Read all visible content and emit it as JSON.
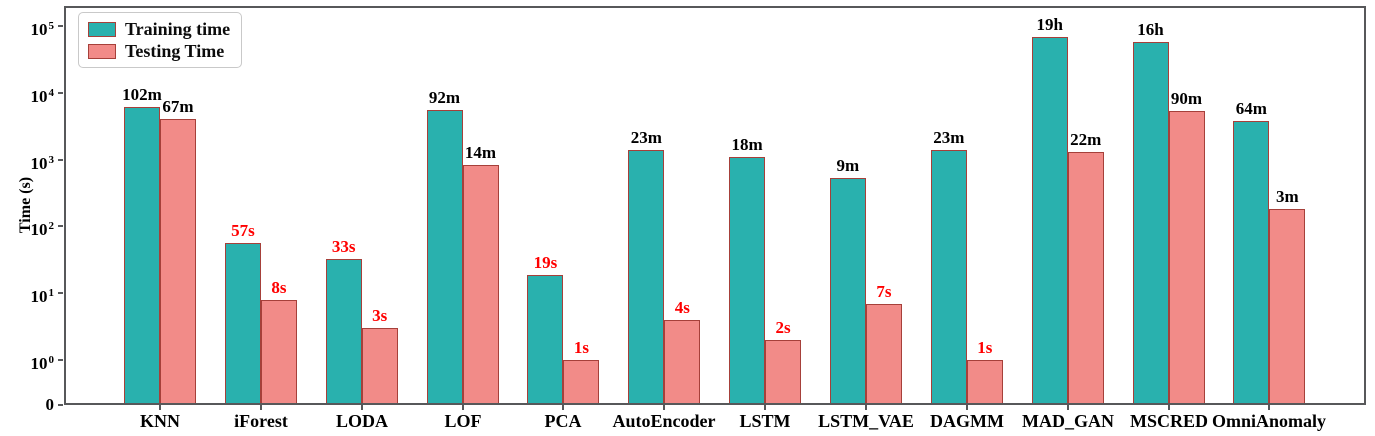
{
  "chart_data": {
    "type": "bar",
    "title": "",
    "xlabel": "",
    "ylabel": "Time (s)",
    "yscale": "symlog",
    "ylim": [
      0,
      100000
    ],
    "grid": false,
    "legend_position": "upper left",
    "categories": [
      "KNN",
      "iForest",
      "LODA",
      "LOF",
      "PCA",
      "AutoEncoder",
      "LSTM",
      "LSTM_VAE",
      "DAGMM",
      "MAD_GAN",
      "MSCRED",
      "OmniAnomaly"
    ],
    "y_ticks": [
      {
        "base": "10",
        "exp": "5",
        "value": 100000
      },
      {
        "base": "10",
        "exp": "4",
        "value": 10000
      },
      {
        "base": "10",
        "exp": "3",
        "value": 1000
      },
      {
        "base": "10",
        "exp": "2",
        "value": 100
      },
      {
        "base": "10",
        "exp": "1",
        "value": 10
      },
      {
        "base": "10",
        "exp": "0",
        "value": 1
      },
      {
        "base": "0",
        "exp": "",
        "value": 0
      }
    ],
    "series": [
      {
        "name": "Training time",
        "color": "#29b1ae",
        "edge_color": "#a6403a",
        "values_seconds": [
          6120,
          57,
          33,
          5520,
          19,
          1380,
          1080,
          540,
          1380,
          68400,
          57600,
          3840
        ],
        "labels": [
          "102m",
          "57s",
          "33s",
          "92m",
          "19s",
          "23m",
          "18m",
          "9m",
          "23m",
          "19h",
          "16h",
          "64m"
        ],
        "label_colors": [
          "#000000",
          "#ff0000",
          "#ff0000",
          "#000000",
          "#ff0000",
          "#000000",
          "#000000",
          "#000000",
          "#000000",
          "#000000",
          "#000000",
          "#000000"
        ]
      },
      {
        "name": "Testing Time",
        "color": "#f28b88",
        "edge_color": "#a6403a",
        "values_seconds": [
          4020,
          8,
          3,
          840,
          1,
          4,
          2,
          7,
          1,
          1320,
          5400,
          180
        ],
        "labels": [
          "67m",
          "8s",
          "3s",
          "14m",
          "1s",
          "4s",
          "2s",
          "7s",
          "1s",
          "22m",
          "90m",
          "3m"
        ],
        "label_colors": [
          "#000000",
          "#ff0000",
          "#ff0000",
          "#000000",
          "#ff0000",
          "#ff0000",
          "#ff0000",
          "#ff0000",
          "#ff0000",
          "#000000",
          "#000000",
          "#000000"
        ]
      }
    ]
  }
}
